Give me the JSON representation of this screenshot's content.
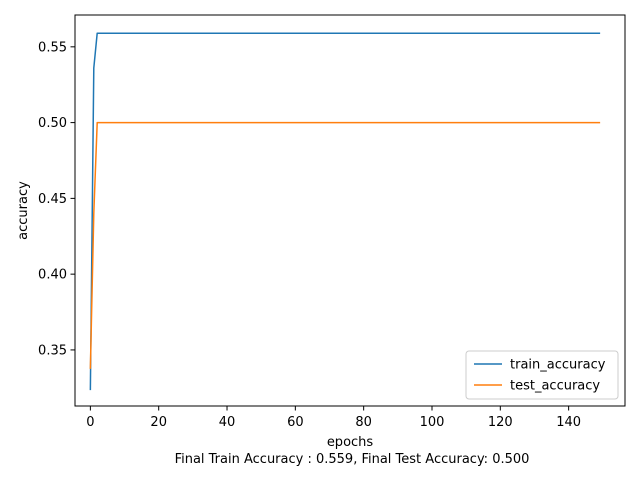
{
  "chart_data": {
    "type": "line",
    "xlabel": "epochs",
    "ylabel": "accuracy",
    "caption": "Final Train Accuracy : 0.559, Final Test Accuracy: 0.500",
    "xlim": [
      -4.5,
      156.5
    ],
    "ylim": [
      0.313,
      0.571
    ],
    "xticks": [
      0,
      20,
      40,
      60,
      80,
      100,
      120,
      140
    ],
    "yticks": [
      0.35,
      0.4,
      0.45,
      0.5,
      0.55
    ],
    "ytick_labels": [
      "0.35",
      "0.40",
      "0.45",
      "0.50",
      "0.55"
    ],
    "legend_position": "lower-right",
    "grid": false,
    "series": [
      {
        "name": "train_accuracy",
        "color": "#1f77b4",
        "x": [
          0,
          1,
          2,
          149
        ],
        "y": [
          0.324,
          0.536,
          0.559,
          0.559
        ]
      },
      {
        "name": "test_accuracy",
        "color": "#ff7f0e",
        "x": [
          0,
          1,
          2,
          149
        ],
        "y": [
          0.338,
          0.44,
          0.5,
          0.5
        ]
      }
    ]
  }
}
